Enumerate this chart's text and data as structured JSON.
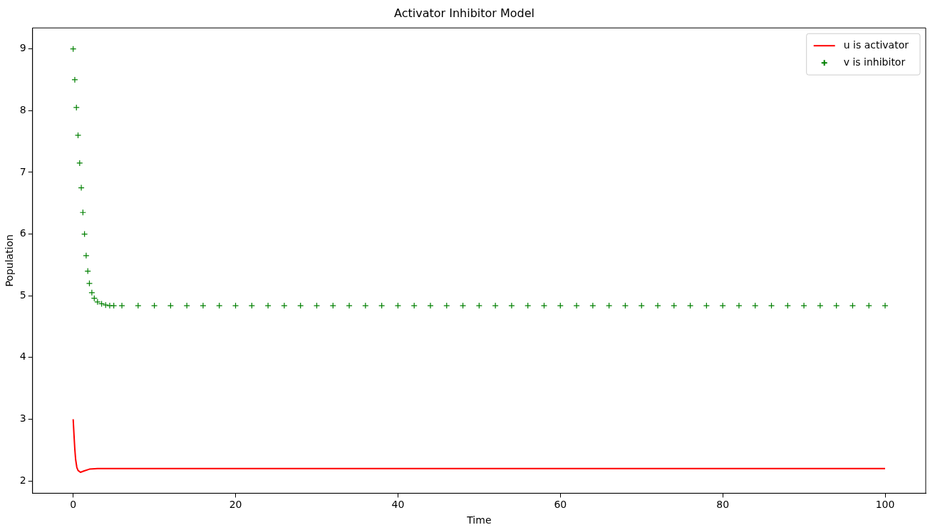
{
  "chart_data": {
    "type": "line",
    "title": "Activator Inhibitor Model",
    "xlabel": "Time",
    "ylabel": "Population",
    "xlim": [
      -5,
      105
    ],
    "xticks": [
      0,
      20,
      40,
      60,
      80,
      100
    ],
    "ylim": [
      1.8,
      9.34
    ],
    "yticks": [
      2,
      3,
      4,
      5,
      6,
      7,
      8,
      9
    ],
    "grid": false,
    "legend": "top right",
    "series": [
      {
        "name": "u is activator",
        "color": "#ff0000",
        "marker": "none",
        "line_style": "solid",
        "x": [
          0,
          0.1,
          0.2,
          0.3,
          0.45,
          0.6,
          0.9,
          1.3,
          2,
          3,
          5,
          100
        ],
        "values": [
          3,
          2.75,
          2.52,
          2.35,
          2.22,
          2.17,
          2.14,
          2.16,
          2.19,
          2.2,
          2.2,
          2.2
        ]
      },
      {
        "name": "v is inhibitor",
        "type": "scatter",
        "color": "#008000",
        "marker": "cross",
        "x": [
          0,
          0.2,
          0.4,
          0.6,
          0.8,
          1.0,
          1.2,
          1.4,
          1.6,
          1.8,
          2.0,
          2.3,
          2.6,
          3.0,
          3.5,
          4,
          4.5,
          5,
          6,
          8,
          10,
          12,
          14,
          16,
          18,
          20,
          22,
          24,
          26,
          28,
          30,
          32,
          34,
          36,
          38,
          40,
          42,
          44,
          46,
          48,
          50,
          52,
          54,
          56,
          58,
          60,
          62,
          64,
          66,
          68,
          70,
          72,
          74,
          76,
          78,
          80,
          82,
          84,
          86,
          88,
          90,
          92,
          94,
          96,
          98,
          100
        ],
        "values": [
          9,
          8.5,
          8.05,
          7.6,
          7.15,
          6.75,
          6.35,
          6.0,
          5.65,
          5.4,
          5.2,
          5.05,
          4.96,
          4.9,
          4.87,
          4.85,
          4.84,
          4.84,
          4.84,
          4.84,
          4.84,
          4.84,
          4.84,
          4.84,
          4.84,
          4.84,
          4.84,
          4.84,
          4.84,
          4.84,
          4.84,
          4.84,
          4.84,
          4.84,
          4.84,
          4.84,
          4.84,
          4.84,
          4.84,
          4.84,
          4.84,
          4.84,
          4.84,
          4.84,
          4.84,
          4.84,
          4.84,
          4.84,
          4.84,
          4.84,
          4.84,
          4.84,
          4.84,
          4.84,
          4.84,
          4.84,
          4.84,
          4.84,
          4.84,
          4.84,
          4.84,
          4.84,
          4.84,
          4.84,
          4.84,
          4.84
        ]
      }
    ]
  }
}
